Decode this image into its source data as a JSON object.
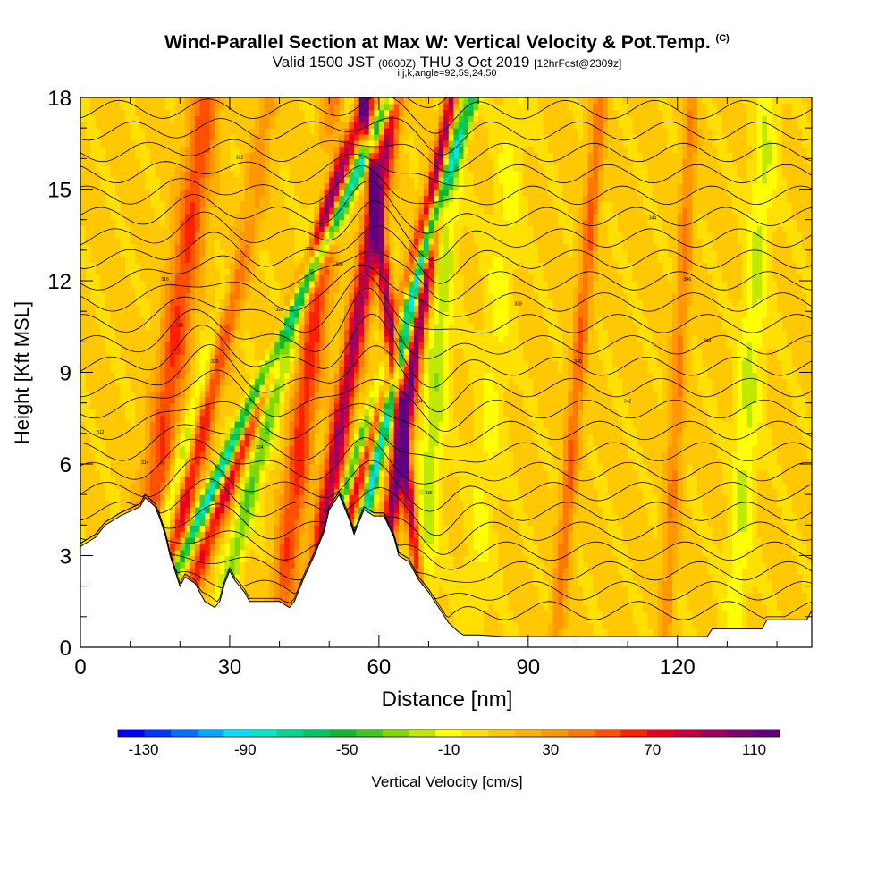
{
  "title": {
    "main": "Wind-Parallel Section at Max W: Vertical Velocity & Pot.Temp.",
    "main_tag": "(C)",
    "valid_a": "Valid 1500 JST",
    "valid_b": "(0600Z)",
    "valid_c": "THU 3 Oct 2019",
    "valid_d": "[12hrFcst@2309z]",
    "ijk": "i,j,k,angle=92,59,24,50"
  },
  "chart_data": {
    "type": "heatmap",
    "xlabel": "Distance [nm]",
    "ylabel": "Height [Kft MSL]",
    "xlim": [
      0,
      147
    ],
    "ylim": [
      0,
      18
    ],
    "x_ticks": [
      "0",
      "30",
      "60",
      "90",
      "120"
    ],
    "y_ticks": [
      "0",
      "3",
      "6",
      "9",
      "12",
      "15",
      "18"
    ],
    "x_tick_values": [
      0,
      30,
      60,
      90,
      120
    ],
    "y_tick_values": [
      0,
      3,
      6,
      9,
      12,
      15,
      18
    ],
    "colorbar": {
      "label": "Vertical Velocity [cm/s]",
      "tick_labels": [
        "-130",
        "-90",
        "-50",
        "-10",
        "30",
        "70",
        "110"
      ],
      "tick_values": [
        -130,
        -90,
        -50,
        -10,
        30,
        70,
        110
      ],
      "range": [
        -140,
        120
      ],
      "colors": [
        "#0000ff",
        "#0038ff",
        "#0070ff",
        "#00a8ff",
        "#00e0ff",
        "#00e8c8",
        "#00d890",
        "#00c860",
        "#10b830",
        "#40c820",
        "#80d800",
        "#c0e800",
        "#ffff00",
        "#ffe000",
        "#ffc800",
        "#ffb000",
        "#ff9800",
        "#ff7800",
        "#ff5000",
        "#ff2000",
        "#e80020",
        "#c00040",
        "#a00060",
        "#800070",
        "#600080"
      ]
    },
    "terrain_kft": [
      [
        0,
        3.3
      ],
      [
        3,
        3.6
      ],
      [
        5,
        4
      ],
      [
        8,
        4.3
      ],
      [
        12,
        4.6
      ],
      [
        13,
        4.9
      ],
      [
        15,
        4.6
      ],
      [
        16,
        4.2
      ],
      [
        17,
        3.7
      ],
      [
        18,
        3
      ],
      [
        19,
        2.5
      ],
      [
        20,
        2
      ],
      [
        21,
        2.3
      ],
      [
        23,
        2.1
      ],
      [
        25,
        1.5
      ],
      [
        27,
        1.3
      ],
      [
        28,
        1.5
      ],
      [
        29,
        2.1
      ],
      [
        30,
        2.5
      ],
      [
        31,
        2.2
      ],
      [
        33,
        1.8
      ],
      [
        34,
        1.5
      ],
      [
        36,
        1.5
      ],
      [
        40,
        1.5
      ],
      [
        42,
        1.3
      ],
      [
        43,
        1.5
      ],
      [
        45,
        2.3
      ],
      [
        47,
        3
      ],
      [
        49,
        3.8
      ],
      [
        50,
        4.5
      ],
      [
        52,
        5
      ],
      [
        53,
        4.6
      ],
      [
        54,
        4.2
      ],
      [
        55,
        3.7
      ],
      [
        56,
        4.1
      ],
      [
        57,
        4.5
      ],
      [
        59,
        4.3
      ],
      [
        61,
        4.3
      ],
      [
        63,
        3.6
      ],
      [
        64,
        3
      ],
      [
        66,
        2.8
      ],
      [
        68,
        2.2
      ],
      [
        70,
        1.8
      ],
      [
        72,
        1.3
      ],
      [
        74,
        0.8
      ],
      [
        76,
        0.5
      ],
      [
        77,
        0.4
      ],
      [
        80,
        0.4
      ],
      [
        85,
        0.35
      ],
      [
        90,
        0.35
      ],
      [
        100,
        0.35
      ],
      [
        110,
        0.35
      ],
      [
        120,
        0.35
      ],
      [
        126,
        0.35
      ],
      [
        127,
        0.6
      ],
      [
        131,
        0.6
      ],
      [
        134,
        0.6
      ],
      [
        137,
        0.6
      ],
      [
        138,
        0.9
      ],
      [
        142,
        0.9
      ],
      [
        146,
        0.9
      ],
      [
        147,
        1.2
      ]
    ],
    "updraft_bands": [
      {
        "x": 15,
        "slope": 0.8,
        "w": 3,
        "amp": 50
      },
      {
        "x": 21,
        "slope": 1.4,
        "w": 2.2,
        "amp": 80
      },
      {
        "x": 29,
        "slope": 2.2,
        "w": 1.8,
        "amp": 70
      },
      {
        "x": 43,
        "slope": 0.7,
        "w": 2.5,
        "amp": 55
      },
      {
        "x": 50,
        "slope": 1,
        "w": 2,
        "amp": 85
      },
      {
        "x": 55,
        "slope": 1.6,
        "w": 1.6,
        "amp": 70
      },
      {
        "x": 63,
        "slope": 0.9,
        "w": 1.6,
        "amp": 100
      },
      {
        "x": 66,
        "slope": -0.7,
        "w": 1.2,
        "amp": 80
      },
      {
        "x": 98,
        "slope": 0.5,
        "w": 1.5,
        "amp": 40
      },
      {
        "x": 119,
        "slope": 0.3,
        "w": 1.5,
        "amp": 30
      }
    ],
    "downdraft_bands": [
      {
        "x": 19,
        "slope": 1.6,
        "w": 2,
        "amp": -60
      },
      {
        "x": 26,
        "slope": 2.8,
        "w": 1.5,
        "amp": -100
      },
      {
        "x": 34,
        "slope": 1.5,
        "w": 2,
        "amp": -45
      },
      {
        "x": 53,
        "slope": 2,
        "w": 1.3,
        "amp": -80
      },
      {
        "x": 58,
        "slope": 1.4,
        "w": 1.2,
        "amp": -100
      },
      {
        "x": 70,
        "slope": 0.4,
        "w": 2.5,
        "amp": -30
      },
      {
        "x": 81,
        "slope": 0.5,
        "w": 3,
        "amp": -15
      },
      {
        "x": 133,
        "slope": 0.4,
        "w": 2.5,
        "amp": -25
      }
    ],
    "theta_contour_labels": [
      "312",
      "314",
      "316",
      "318",
      "320",
      "322",
      "324",
      "326",
      "328",
      "330",
      "332",
      "334",
      "336",
      "338",
      "340",
      "342",
      "344",
      "346",
      "348"
    ]
  }
}
